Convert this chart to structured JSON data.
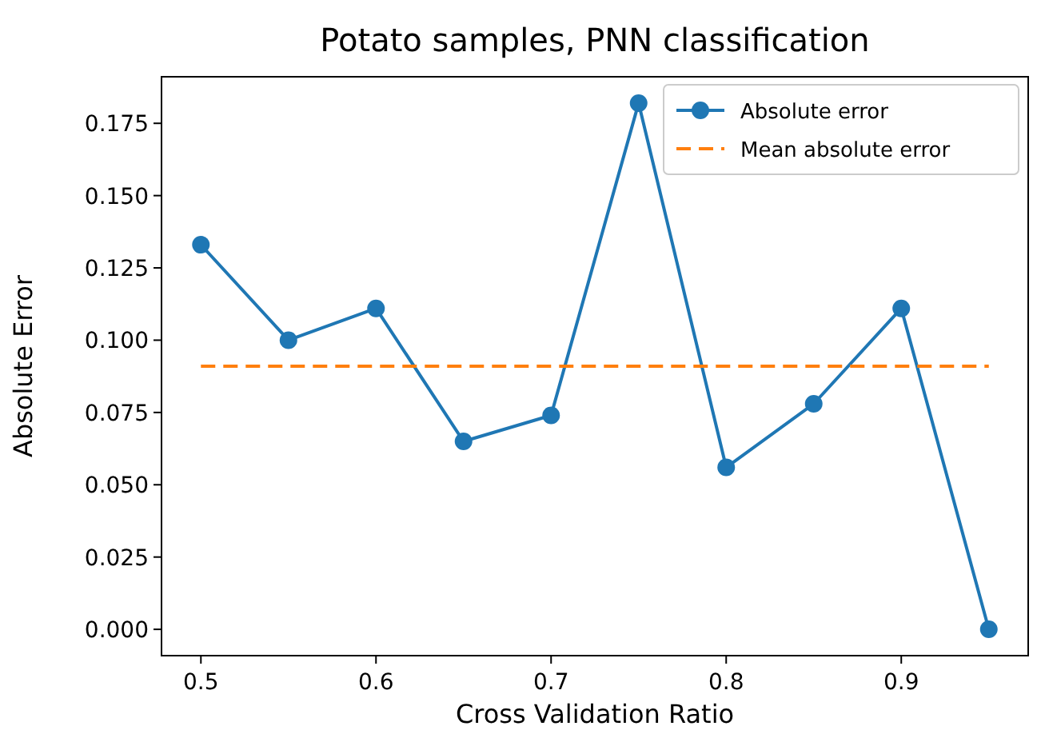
{
  "chart_data": {
    "type": "line",
    "title": "Potato samples, PNN classification",
    "xlabel": "Cross Validation Ratio",
    "ylabel": "Absolute Error",
    "x": [
      0.5,
      0.55,
      0.6,
      0.65,
      0.7,
      0.75,
      0.8,
      0.85,
      0.9,
      0.95
    ],
    "series": [
      {
        "name": "Absolute error",
        "color": "#1f77b4",
        "values": [
          0.133,
          0.1,
          0.111,
          0.065,
          0.074,
          0.182,
          0.056,
          0.078,
          0.111,
          0
        ],
        "marker": "circle",
        "line_style": "solid"
      },
      {
        "name": "Mean absolute error",
        "color": "#ff7f0e",
        "x": [
          0.5,
          0.95
        ],
        "values": [
          0.091,
          0.091
        ],
        "marker": "none",
        "line_style": "dashed"
      }
    ],
    "xlim": [
      0.4775,
      0.9725
    ],
    "ylim": [
      -0.0091,
      0.1911
    ],
    "xticks": [
      0.5,
      0.6,
      0.7,
      0.8,
      0.9
    ],
    "yticks": [
      {
        "value": 0,
        "label": "0.000"
      },
      {
        "value": 0.025,
        "label": "0.025"
      },
      {
        "value": 0.05,
        "label": "0.050"
      },
      {
        "value": 0.075,
        "label": "0.075"
      },
      {
        "value": 0.1,
        "label": "0.100"
      },
      {
        "value": 0.125,
        "label": "0.125"
      },
      {
        "value": 0.15,
        "label": "0.150"
      },
      {
        "value": 0.175,
        "label": "0.175"
      }
    ],
    "grid": false,
    "legend": "top right"
  }
}
